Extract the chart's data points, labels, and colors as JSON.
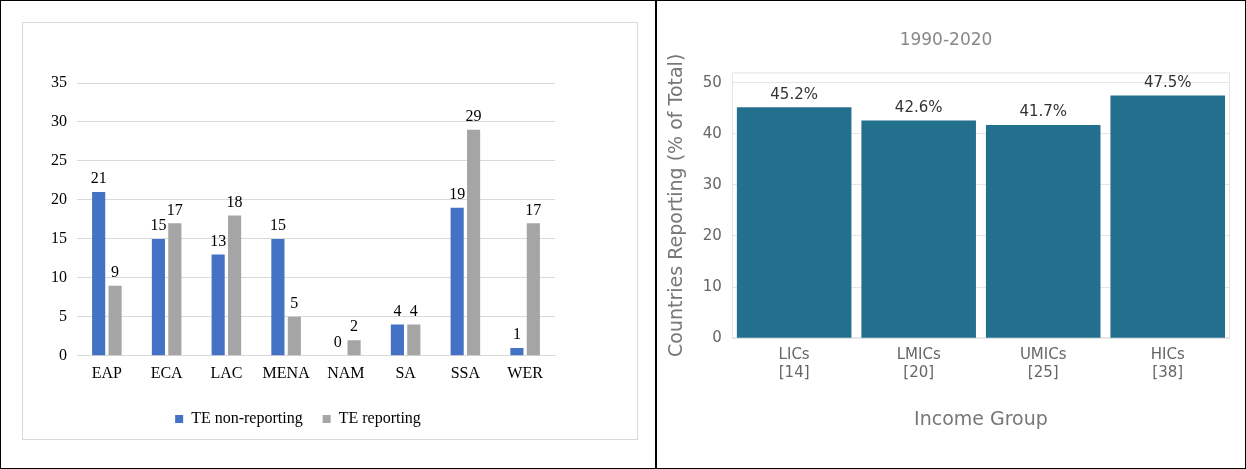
{
  "chart_data": [
    {
      "type": "bar",
      "categories": [
        "EAP",
        "ECA",
        "LAC",
        "MENA",
        "NAM",
        "SA",
        "SSA",
        "WER"
      ],
      "series": [
        {
          "name": "TE non-reporting",
          "color": "#4472c4",
          "values": [
            21,
            15,
            13,
            15,
            0,
            4,
            19,
            1
          ]
        },
        {
          "name": "TE reporting",
          "color": "#a5a5a5",
          "values": [
            9,
            17,
            18,
            5,
            2,
            4,
            29,
            17
          ]
        }
      ],
      "ylim": [
        0,
        35
      ],
      "yticks": [
        0,
        5,
        10,
        15,
        20,
        25,
        30,
        35
      ],
      "grid": "y",
      "legend": "bottom",
      "data_labels": true
    },
    {
      "type": "bar",
      "title": "1990-2020",
      "categories": [
        "LICs\n[14]",
        "LMICs\n[20]",
        "UMICs\n[25]",
        "HICs\n[38]"
      ],
      "values": [
        45.2,
        42.6,
        41.7,
        47.5
      ],
      "value_labels": [
        "45.2%",
        "42.6%",
        "41.7%",
        "47.5%"
      ],
      "color": "#236f8e",
      "ylim": [
        0,
        52
      ],
      "yticks": [
        0,
        10,
        20,
        30,
        40,
        50
      ],
      "grid": "y",
      "xlabel": "Income Group",
      "ylabel": "Countries Reporting (% of Total)"
    }
  ]
}
